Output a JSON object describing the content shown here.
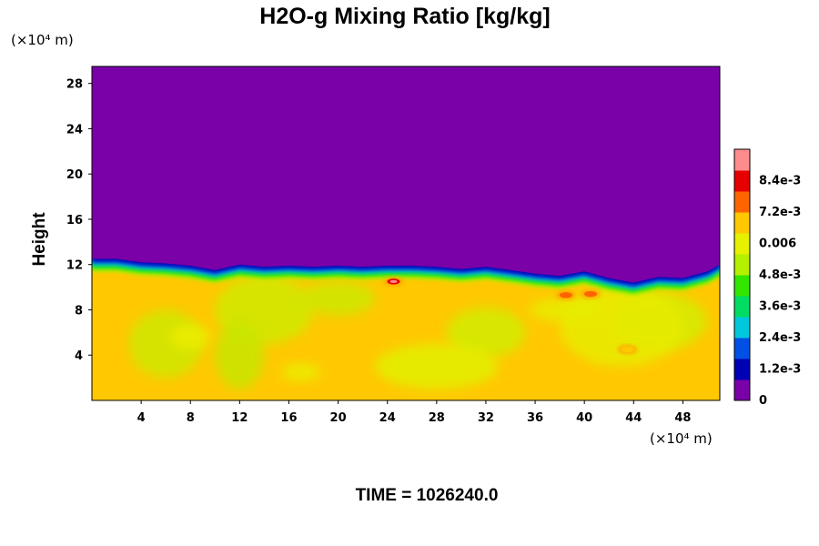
{
  "chart_data": {
    "type": "heatmap",
    "title": "H2O-g Mixing Ratio [kg/kg]",
    "ylabel": "Height",
    "x_unit_label": "(×10⁴ m)",
    "y_unit_label": "(×10⁴ m)",
    "x_ticks": [
      "4",
      "8",
      "12",
      "16",
      "20",
      "24",
      "28",
      "32",
      "36",
      "40",
      "44",
      "48"
    ],
    "y_ticks": [
      "4",
      "8",
      "12",
      "16",
      "20",
      "24",
      "28"
    ],
    "xlim": [
      0,
      51
    ],
    "ylim": [
      0,
      29.5
    ],
    "colorbar": {
      "labels": [
        "0",
        "1.2e-3",
        "2.4e-3",
        "3.6e-3",
        "4.8e-3",
        "0.006",
        "7.2e-3",
        "8.4e-3"
      ],
      "range": [
        0,
        0.0096
      ],
      "colors": [
        "#7a00a8",
        "#0000b4",
        "#0050e6",
        "#00c8dc",
        "#00dc64",
        "#32e600",
        "#b4f000",
        "#e6f000",
        "#ffc800",
        "#ff6400",
        "#e60000",
        "#ff8c8c"
      ]
    },
    "fields": {
      "upper_value": 0,
      "lower_value": 0.0065,
      "moist_layer_top_profile": {
        "x": [
          0,
          2,
          4,
          6,
          8,
          10,
          12,
          14,
          16,
          18,
          20,
          22,
          24,
          26,
          28,
          30,
          32,
          34,
          36,
          38,
          40,
          42,
          44,
          46,
          48,
          50,
          51
        ],
        "y": [
          12.5,
          12.5,
          12.2,
          12.1,
          11.9,
          11.5,
          12.0,
          11.8,
          11.9,
          11.8,
          11.9,
          11.8,
          11.9,
          11.9,
          11.8,
          11.6,
          11.8,
          11.5,
          11.2,
          11.0,
          11.4,
          10.8,
          10.4,
          10.9,
          10.8,
          11.4,
          12.0
        ]
      },
      "local_maxima": [
        {
          "x": 24.5,
          "y": 10.5,
          "value": 0.0085
        },
        {
          "x": 40.5,
          "y": 9.4,
          "value": 0.0074
        },
        {
          "x": 38.5,
          "y": 9.3,
          "value": 0.0072
        },
        {
          "x": 43.5,
          "y": 4.5,
          "value": 0.007
        }
      ]
    }
  },
  "time_label": "TIME = 1026240.0"
}
